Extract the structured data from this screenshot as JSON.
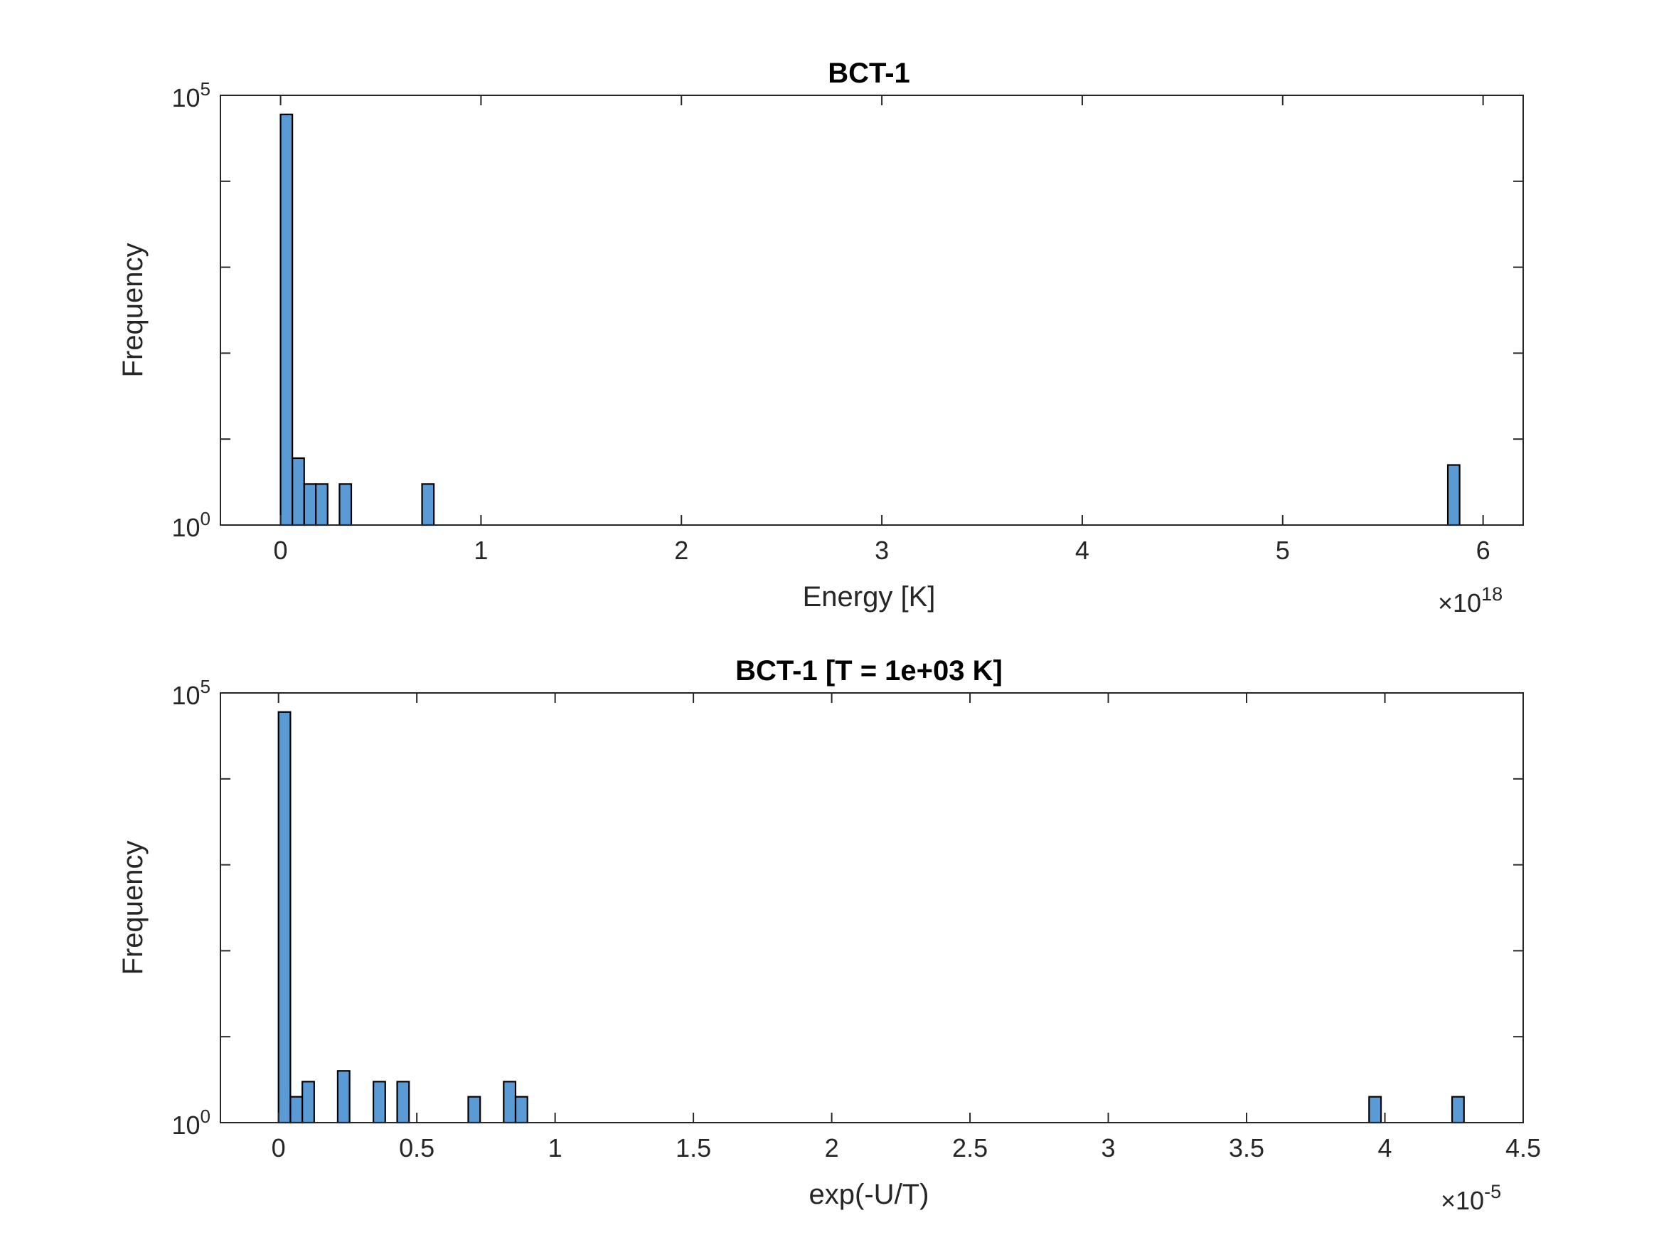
{
  "chart_data": [
    {
      "type": "bar",
      "title": "BCT-1",
      "xlabel": "Energy [K]",
      "ylabel": "Frequency",
      "x_exponent_label": "×10",
      "x_exponent": "18",
      "xlim": [
        -0.3,
        6.2
      ],
      "ylim": [
        1,
        100000
      ],
      "y_scale": "log",
      "x_ticks": [
        0,
        1,
        2,
        3,
        4,
        5,
        6
      ],
      "x_tick_labels": [
        "0",
        "1",
        "2",
        "3",
        "4",
        "5",
        "6"
      ],
      "y_tick_labels": [
        {
          "base": "10",
          "exp": "0"
        },
        {
          "base": "10",
          "exp": "5"
        }
      ],
      "grid": false,
      "color": "#5B9BD5",
      "bin_width": 0.0588,
      "bars": [
        {
          "x0": 0.0,
          "count": 60000
        },
        {
          "x0": 0.059,
          "count": 6
        },
        {
          "x0": 0.118,
          "count": 3
        },
        {
          "x0": 0.176,
          "count": 3
        },
        {
          "x0": 0.294,
          "count": 3
        },
        {
          "x0": 0.706,
          "count": 3
        },
        {
          "x0": 5.824,
          "count": 5
        }
      ]
    },
    {
      "type": "bar",
      "title": "BCT-1 [T = 1e+03 K]",
      "xlabel": "exp(-U/T)",
      "ylabel": "Frequency",
      "x_exponent_label": "×10",
      "x_exponent": "-5",
      "xlim": [
        -0.21,
        4.5
      ],
      "ylim": [
        1,
        100000
      ],
      "y_scale": "log",
      "x_ticks": [
        0,
        0.5,
        1,
        1.5,
        2,
        2.5,
        3,
        3.5,
        4,
        4.5
      ],
      "x_tick_labels": [
        "0",
        "0.5",
        "1",
        "1.5",
        "2",
        "2.5",
        "3",
        "3.5",
        "4",
        "4.5"
      ],
      "y_tick_labels": [
        {
          "base": "10",
          "exp": "0"
        },
        {
          "base": "10",
          "exp": "5"
        }
      ],
      "grid": false,
      "color": "#5B9BD5",
      "bin_width": 0.0429,
      "bars": [
        {
          "x0": 0.0,
          "count": 60000
        },
        {
          "x0": 0.043,
          "count": 2
        },
        {
          "x0": 0.086,
          "count": 3
        },
        {
          "x0": 0.214,
          "count": 4
        },
        {
          "x0": 0.343,
          "count": 3
        },
        {
          "x0": 0.429,
          "count": 3
        },
        {
          "x0": 0.686,
          "count": 2
        },
        {
          "x0": 0.814,
          "count": 3
        },
        {
          "x0": 0.857,
          "count": 2
        },
        {
          "x0": 3.943,
          "count": 2
        },
        {
          "x0": 4.243,
          "count": 2
        }
      ]
    }
  ]
}
